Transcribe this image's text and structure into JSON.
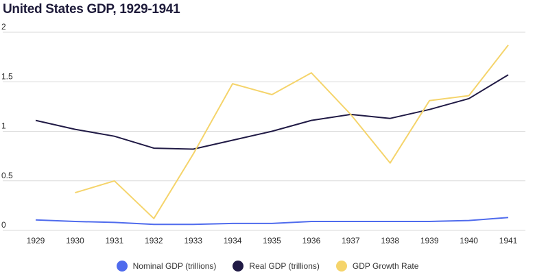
{
  "chart_data": {
    "type": "line",
    "title": "United States GDP, 1929-1941",
    "xlabel": "",
    "ylabel": "",
    "x": [
      "1929",
      "1930",
      "1931",
      "1932",
      "1933",
      "1934",
      "1935",
      "1936",
      "1937",
      "1938",
      "1939",
      "1940",
      "1941"
    ],
    "yticks": [
      "0",
      "0.5",
      "1",
      "1.5",
      "2"
    ],
    "ylim": [
      0,
      2
    ],
    "grid": true,
    "legend_position": "bottom",
    "series": [
      {
        "name": "Nominal GDP (trillions)",
        "color": "#4f6bed",
        "values": [
          0.105,
          0.09,
          0.08,
          0.06,
          0.06,
          0.07,
          0.07,
          0.09,
          0.09,
          0.09,
          0.09,
          0.1,
          0.13
        ]
      },
      {
        "name": "Real GDP (trillions)",
        "color": "#201a45",
        "values": [
          1.11,
          1.02,
          0.95,
          0.83,
          0.82,
          0.91,
          1.0,
          1.11,
          1.17,
          1.13,
          1.22,
          1.33,
          1.57
        ]
      },
      {
        "name": "GDP Growth Rate",
        "color": "#f5d46b",
        "values": [
          null,
          0.38,
          0.5,
          0.12,
          0.77,
          1.48,
          1.37,
          1.59,
          1.17,
          0.68,
          1.31,
          1.36,
          1.87
        ]
      }
    ]
  }
}
